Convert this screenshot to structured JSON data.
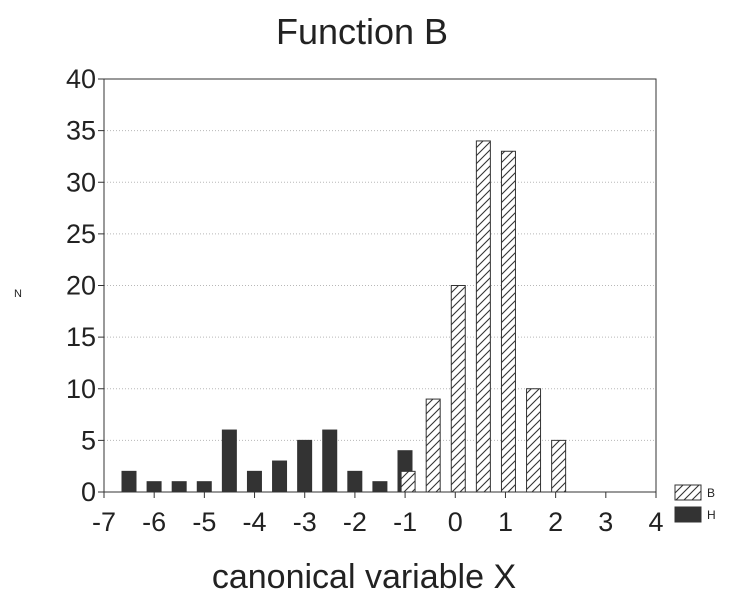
{
  "chart_data": {
    "type": "bar",
    "title": "Function B",
    "xlabel": "canonical variable X",
    "ylabel": "N",
    "xlim": [
      -7,
      4
    ],
    "ylim": [
      0,
      40
    ],
    "xticks": [
      -7,
      -6,
      -5,
      -4,
      -3,
      -2,
      -1,
      0,
      1,
      2,
      3,
      4
    ],
    "yticks": [
      0,
      5,
      10,
      15,
      20,
      25,
      30,
      35,
      40
    ],
    "grid": "horizontal dotted",
    "legend_position": "bottom-right",
    "series": [
      {
        "name": "B",
        "pattern": "diagonal-hatch",
        "color": "#ffffff",
        "bins": [
          {
            "x": -1.0,
            "value": 2
          },
          {
            "x": -0.5,
            "value": 9
          },
          {
            "x": 0.0,
            "value": 20
          },
          {
            "x": 0.5,
            "value": 34
          },
          {
            "x": 1.0,
            "value": 33
          },
          {
            "x": 1.5,
            "value": 10
          },
          {
            "x": 2.0,
            "value": 5
          },
          {
            "x": 2.5,
            "value": 0
          },
          {
            "x": 3.0,
            "value": 0
          },
          {
            "x": 3.5,
            "value": 0
          }
        ]
      },
      {
        "name": "H",
        "pattern": "solid",
        "color": "#333333",
        "bins": [
          {
            "x": -7.0,
            "value": 2
          },
          {
            "x": -6.5,
            "value": 1
          },
          {
            "x": -6.0,
            "value": 1
          },
          {
            "x": -5.5,
            "value": 1
          },
          {
            "x": -5.0,
            "value": 6
          },
          {
            "x": -4.5,
            "value": 2
          },
          {
            "x": -4.0,
            "value": 3
          },
          {
            "x": -3.5,
            "value": 5
          },
          {
            "x": -3.0,
            "value": 6
          },
          {
            "x": -2.5,
            "value": 2
          },
          {
            "x": -2.0,
            "value": 1
          },
          {
            "x": -1.5,
            "value": 4
          }
        ]
      }
    ]
  }
}
